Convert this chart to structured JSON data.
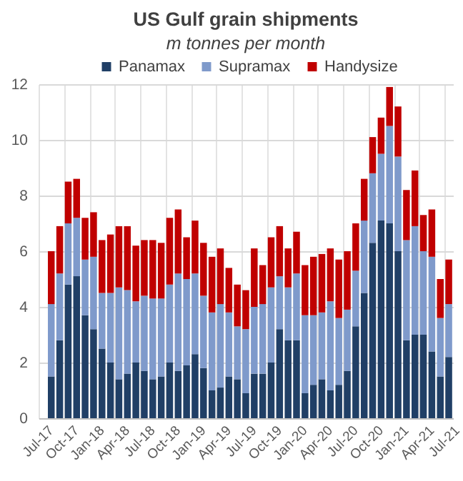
{
  "chart_data": {
    "type": "bar",
    "title": "US Gulf grain shipments",
    "subtitle": "m tonnes per month",
    "categories": [
      "Jul-17",
      null,
      null,
      "Oct-17",
      null,
      null,
      "Jan-18",
      null,
      null,
      "Apr-18",
      null,
      null,
      "Jul-18",
      null,
      null,
      "Oct-18",
      null,
      null,
      "Jan-19",
      null,
      null,
      "Apr-19",
      null,
      null,
      "Jul-19",
      null,
      null,
      "Oct-19",
      null,
      null,
      "Jan-20",
      null,
      null,
      "Apr-20",
      null,
      null,
      "Jul-20",
      null,
      null,
      "Oct-20",
      null,
      null,
      "Jan-21",
      null,
      null,
      "Apr-21",
      null,
      null,
      "Jul-21"
    ],
    "series": [
      {
        "name": "Panamax",
        "color": "#203f66",
        "values": [
          null,
          1.5,
          2.8,
          4.8,
          5.1,
          3.7,
          3.2,
          2.5,
          2.0,
          1.4,
          1.6,
          2.0,
          1.7,
          1.4,
          1.5,
          2.0,
          1.7,
          1.9,
          2.3,
          1.8,
          1.0,
          1.1,
          1.5,
          1.4,
          0.9,
          1.6,
          1.6,
          2.0,
          3.2,
          2.8,
          2.8,
          0.9,
          1.2,
          1.4,
          1.0,
          1.2,
          1.7,
          3.3,
          4.5,
          6.3,
          7.1,
          7.0,
          6.0,
          2.8,
          3.0,
          3.0,
          2.4,
          1.5,
          2.2
        ]
      },
      {
        "name": "Supramax",
        "color": "#7f9acb",
        "values": [
          null,
          2.6,
          2.4,
          2.2,
          2.1,
          2.0,
          2.6,
          2.0,
          2.5,
          3.3,
          3.0,
          2.2,
          2.7,
          2.9,
          2.8,
          2.8,
          3.5,
          3.1,
          2.9,
          2.6,
          2.8,
          3.0,
          2.3,
          1.9,
          2.3,
          2.4,
          2.5,
          2.7,
          1.9,
          1.9,
          2.4,
          2.8,
          2.5,
          2.4,
          3.2,
          2.4,
          2.2,
          2.0,
          2.6,
          2.5,
          2.4,
          3.5,
          3.4,
          3.6,
          3.9,
          3.0,
          3.4,
          2.1,
          1.9
        ]
      },
      {
        "name": "Handysize",
        "color": "#c00000",
        "values": [
          null,
          1.9,
          1.7,
          1.5,
          1.4,
          1.5,
          1.6,
          1.9,
          2.1,
          2.2,
          2.3,
          2.0,
          2.0,
          2.1,
          2.0,
          2.4,
          2.3,
          1.5,
          1.9,
          1.9,
          2.0,
          2.0,
          1.6,
          1.5,
          1.4,
          2.1,
          1.4,
          1.8,
          1.8,
          1.4,
          1.5,
          1.8,
          2.1,
          2.1,
          1.9,
          2.1,
          2.1,
          1.7,
          1.5,
          1.3,
          1.3,
          1.4,
          1.8,
          1.8,
          2.0,
          1.3,
          1.7,
          1.4,
          1.6
        ]
      }
    ],
    "stacked": true,
    "ylim": [
      0,
      12
    ],
    "yticks": [
      0,
      2,
      4,
      6,
      8,
      10,
      12
    ],
    "grid": true,
    "legend": "top"
  }
}
